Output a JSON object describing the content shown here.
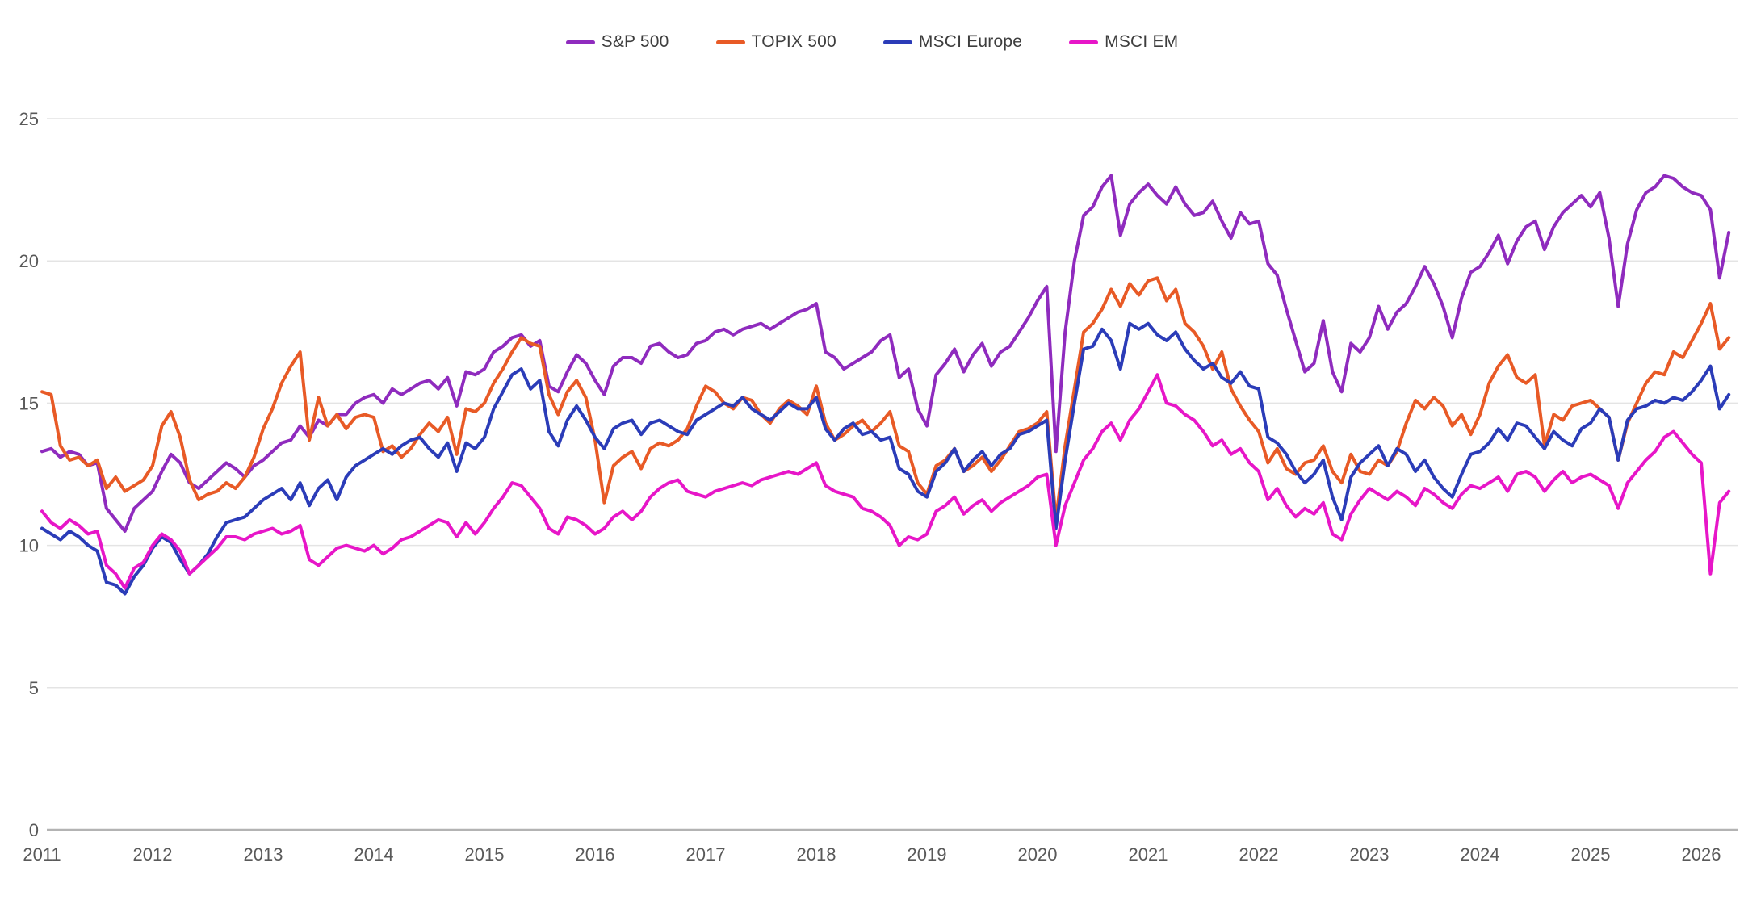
{
  "colors": {
    "background": "#ffffff",
    "gridline": "#e4e4e4",
    "axis_line": "#b3b3b3",
    "tick_text": "#595959",
    "legend_text": "#3d3d3d"
  },
  "chart_data": {
    "type": "line",
    "title": "",
    "xlabel": "",
    "ylabel": "",
    "grid": "horizontal",
    "legend_position": "top-center",
    "x_axis": {
      "min": 2011,
      "max": 2026.35,
      "ticks": [
        2011,
        2012,
        2013,
        2014,
        2015,
        2016,
        2017,
        2018,
        2019,
        2020,
        2021,
        2022,
        2023,
        2024,
        2025,
        2026
      ]
    },
    "y_axis": {
      "min": 0,
      "max": 25,
      "ticks": [
        0,
        5,
        10,
        15,
        20,
        25
      ]
    },
    "x_start": 2011.0,
    "x_step": 0.0833333,
    "series": [
      {
        "name": "S&P 500",
        "color": "#8f2bbe",
        "values": [
          13.3,
          13.4,
          13.1,
          13.3,
          13.2,
          12.8,
          12.9,
          11.3,
          10.9,
          10.5,
          11.3,
          11.6,
          11.9,
          12.6,
          13.2,
          12.9,
          12.2,
          12.0,
          12.3,
          12.6,
          12.9,
          12.7,
          12.4,
          12.8,
          13.0,
          13.3,
          13.6,
          13.7,
          14.2,
          13.8,
          14.4,
          14.2,
          14.6,
          14.6,
          15.0,
          15.2,
          15.3,
          15.0,
          15.5,
          15.3,
          15.5,
          15.7,
          15.8,
          15.5,
          15.9,
          14.9,
          16.1,
          16.0,
          16.2,
          16.8,
          17.0,
          17.3,
          17.4,
          17.0,
          17.2,
          15.6,
          15.4,
          16.1,
          16.7,
          16.4,
          15.8,
          15.3,
          16.3,
          16.6,
          16.6,
          16.4,
          17.0,
          17.1,
          16.8,
          16.6,
          16.7,
          17.1,
          17.2,
          17.5,
          17.6,
          17.4,
          17.6,
          17.7,
          17.8,
          17.6,
          17.8,
          18.0,
          18.2,
          18.3,
          18.5,
          16.8,
          16.6,
          16.2,
          16.4,
          16.6,
          16.8,
          17.2,
          17.4,
          15.9,
          16.2,
          14.8,
          14.2,
          16.0,
          16.4,
          16.9,
          16.1,
          16.7,
          17.1,
          16.3,
          16.8,
          17.0,
          17.5,
          18.0,
          18.6,
          19.1,
          13.3,
          17.5,
          20.0,
          21.6,
          21.9,
          22.6,
          23.0,
          20.9,
          22.0,
          22.4,
          22.7,
          22.3,
          22.0,
          22.6,
          22.0,
          21.6,
          21.7,
          22.1,
          21.4,
          20.8,
          21.7,
          21.3,
          21.4,
          19.9,
          19.5,
          18.3,
          17.2,
          16.1,
          16.4,
          17.9,
          16.1,
          15.4,
          17.1,
          16.8,
          17.3,
          18.4,
          17.6,
          18.2,
          18.5,
          19.1,
          19.8,
          19.2,
          18.4,
          17.3,
          18.7,
          19.6,
          19.8,
          20.3,
          20.9,
          19.9,
          20.7,
          21.2,
          21.4,
          20.4,
          21.2,
          21.7,
          22.0,
          22.3,
          21.9,
          22.4,
          20.8,
          18.4,
          20.6,
          21.8,
          22.4,
          22.6,
          23.0,
          22.9,
          22.6,
          22.4,
          22.3,
          21.8,
          19.4,
          21.0
        ]
      },
      {
        "name": "TOPIX 500",
        "color": "#e85a26",
        "values": [
          15.4,
          15.3,
          13.5,
          13.0,
          13.1,
          12.8,
          13.0,
          12.0,
          12.4,
          11.9,
          12.1,
          12.3,
          12.8,
          14.2,
          14.7,
          13.8,
          12.3,
          11.6,
          11.8,
          11.9,
          12.2,
          12.0,
          12.4,
          13.1,
          14.1,
          14.8,
          15.7,
          16.3,
          16.8,
          13.7,
          15.2,
          14.2,
          14.6,
          14.1,
          14.5,
          14.6,
          14.5,
          13.3,
          13.5,
          13.1,
          13.4,
          13.9,
          14.3,
          14.0,
          14.5,
          13.2,
          14.8,
          14.7,
          15.0,
          15.7,
          16.2,
          16.8,
          17.3,
          17.1,
          17.0,
          15.3,
          14.6,
          15.4,
          15.8,
          15.2,
          13.7,
          11.5,
          12.8,
          13.1,
          13.3,
          12.7,
          13.4,
          13.6,
          13.5,
          13.7,
          14.1,
          14.9,
          15.6,
          15.4,
          15.0,
          14.8,
          15.2,
          15.1,
          14.6,
          14.3,
          14.8,
          15.1,
          14.9,
          14.6,
          15.6,
          14.3,
          13.7,
          13.9,
          14.2,
          14.4,
          14.0,
          14.3,
          14.7,
          13.5,
          13.3,
          12.2,
          11.8,
          12.8,
          13.0,
          13.4,
          12.6,
          12.8,
          13.1,
          12.6,
          13.0,
          13.5,
          14.0,
          14.1,
          14.3,
          14.7,
          10.9,
          13.5,
          15.5,
          17.5,
          17.8,
          18.3,
          19.0,
          18.4,
          19.2,
          18.8,
          19.3,
          19.4,
          18.6,
          19.0,
          17.8,
          17.5,
          17.0,
          16.2,
          16.8,
          15.5,
          14.9,
          14.4,
          14.0,
          12.9,
          13.4,
          12.7,
          12.5,
          12.9,
          13.0,
          13.5,
          12.6,
          12.2,
          13.2,
          12.6,
          12.5,
          13.0,
          12.8,
          13.3,
          14.3,
          15.1,
          14.8,
          15.2,
          14.9,
          14.2,
          14.6,
          13.9,
          14.6,
          15.7,
          16.3,
          16.7,
          15.9,
          15.7,
          16.0,
          13.5,
          14.6,
          14.4,
          14.9,
          15.0,
          15.1,
          14.8,
          14.5,
          13.0,
          14.3,
          15.0,
          15.7,
          16.1,
          16.0,
          16.8,
          16.6,
          17.2,
          17.8,
          18.5,
          16.9,
          17.3
        ]
      },
      {
        "name": "MSCI Europe",
        "color": "#2b3cb8",
        "values": [
          10.6,
          10.4,
          10.2,
          10.5,
          10.3,
          10.0,
          9.8,
          8.7,
          8.6,
          8.3,
          8.9,
          9.3,
          9.9,
          10.3,
          10.1,
          9.5,
          9.0,
          9.3,
          9.7,
          10.3,
          10.8,
          10.9,
          11.0,
          11.3,
          11.6,
          11.8,
          12.0,
          11.6,
          12.2,
          11.4,
          12.0,
          12.3,
          11.6,
          12.4,
          12.8,
          13.0,
          13.2,
          13.4,
          13.2,
          13.5,
          13.7,
          13.8,
          13.4,
          13.1,
          13.6,
          12.6,
          13.6,
          13.4,
          13.8,
          14.8,
          15.4,
          16.0,
          16.2,
          15.5,
          15.8,
          14.0,
          13.5,
          14.4,
          14.9,
          14.4,
          13.8,
          13.4,
          14.1,
          14.3,
          14.4,
          13.9,
          14.3,
          14.4,
          14.2,
          14.0,
          13.9,
          14.4,
          14.6,
          14.8,
          15.0,
          14.9,
          15.2,
          14.8,
          14.6,
          14.4,
          14.7,
          15.0,
          14.8,
          14.8,
          15.2,
          14.1,
          13.7,
          14.1,
          14.3,
          13.9,
          14.0,
          13.7,
          13.8,
          12.7,
          12.5,
          11.9,
          11.7,
          12.6,
          12.9,
          13.4,
          12.6,
          13.0,
          13.3,
          12.8,
          13.2,
          13.4,
          13.9,
          14.0,
          14.2,
          14.4,
          10.6,
          13.0,
          15.0,
          16.9,
          17.0,
          17.6,
          17.2,
          16.2,
          17.8,
          17.6,
          17.8,
          17.4,
          17.2,
          17.5,
          16.9,
          16.5,
          16.2,
          16.4,
          15.9,
          15.7,
          16.1,
          15.6,
          15.5,
          13.8,
          13.6,
          13.2,
          12.6,
          12.2,
          12.5,
          13.0,
          11.7,
          10.9,
          12.4,
          12.9,
          13.2,
          13.5,
          12.8,
          13.4,
          13.2,
          12.6,
          13.0,
          12.4,
          12.0,
          11.7,
          12.5,
          13.2,
          13.3,
          13.6,
          14.1,
          13.7,
          14.3,
          14.2,
          13.8,
          13.4,
          14.0,
          13.7,
          13.5,
          14.1,
          14.3,
          14.8,
          14.5,
          13.0,
          14.4,
          14.8,
          14.9,
          15.1,
          15.0,
          15.2,
          15.1,
          15.4,
          15.8,
          16.3,
          14.8,
          15.3
        ]
      },
      {
        "name": "MSCI EM",
        "color": "#e716c8",
        "values": [
          11.2,
          10.8,
          10.6,
          10.9,
          10.7,
          10.4,
          10.5,
          9.3,
          9.0,
          8.5,
          9.2,
          9.4,
          10.0,
          10.4,
          10.2,
          9.8,
          9.0,
          9.3,
          9.6,
          9.9,
          10.3,
          10.3,
          10.2,
          10.4,
          10.5,
          10.6,
          10.4,
          10.5,
          10.7,
          9.5,
          9.3,
          9.6,
          9.9,
          10.0,
          9.9,
          9.8,
          10.0,
          9.7,
          9.9,
          10.2,
          10.3,
          10.5,
          10.7,
          10.9,
          10.8,
          10.3,
          10.8,
          10.4,
          10.8,
          11.3,
          11.7,
          12.2,
          12.1,
          11.7,
          11.3,
          10.6,
          10.4,
          11.0,
          10.9,
          10.7,
          10.4,
          10.6,
          11.0,
          11.2,
          10.9,
          11.2,
          11.7,
          12.0,
          12.2,
          12.3,
          11.9,
          11.8,
          11.7,
          11.9,
          12.0,
          12.1,
          12.2,
          12.1,
          12.3,
          12.4,
          12.5,
          12.6,
          12.5,
          12.7,
          12.9,
          12.1,
          11.9,
          11.8,
          11.7,
          11.3,
          11.2,
          11.0,
          10.7,
          10.0,
          10.3,
          10.2,
          10.4,
          11.2,
          11.4,
          11.7,
          11.1,
          11.4,
          11.6,
          11.2,
          11.5,
          11.7,
          11.9,
          12.1,
          12.4,
          12.5,
          10.0,
          11.4,
          12.2,
          13.0,
          13.4,
          14.0,
          14.3,
          13.7,
          14.4,
          14.8,
          15.4,
          16.0,
          15.0,
          14.9,
          14.6,
          14.4,
          14.0,
          13.5,
          13.7,
          13.2,
          13.4,
          12.9,
          12.6,
          11.6,
          12.0,
          11.4,
          11.0,
          11.3,
          11.1,
          11.5,
          10.4,
          10.2,
          11.1,
          11.6,
          12.0,
          11.8,
          11.6,
          11.9,
          11.7,
          11.4,
          12.0,
          11.8,
          11.5,
          11.3,
          11.8,
          12.1,
          12.0,
          12.2,
          12.4,
          11.9,
          12.5,
          12.6,
          12.4,
          11.9,
          12.3,
          12.6,
          12.2,
          12.4,
          12.5,
          12.3,
          12.1,
          11.3,
          12.2,
          12.6,
          13.0,
          13.3,
          13.8,
          14.0,
          13.6,
          13.2,
          12.9,
          9.0,
          11.5,
          11.9
        ]
      }
    ]
  }
}
